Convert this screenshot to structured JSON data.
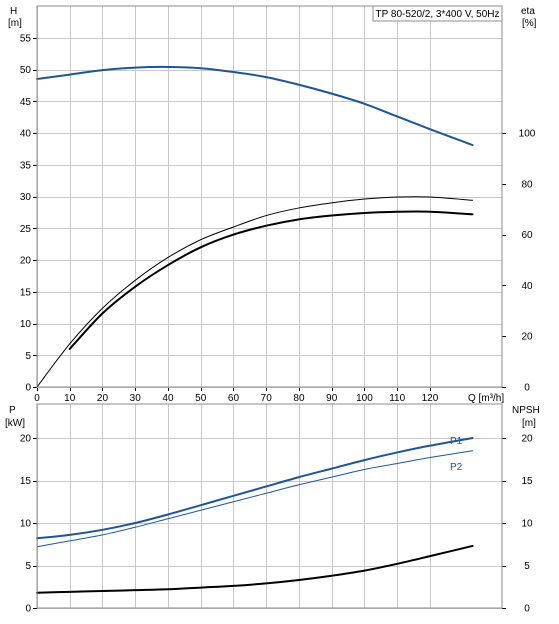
{
  "title_box": "TP 80-520/2, 3*400 V, 50Hz",
  "colors": {
    "blue": "#1f5596",
    "black": "#000000",
    "grid": "#c8c8c8"
  },
  "chart_data": [
    {
      "type": "line",
      "y_left": {
        "label_top": "H",
        "label_unit": "[m]",
        "range": [
          0,
          60
        ],
        "ticks": [
          0,
          5,
          10,
          15,
          20,
          25,
          30,
          35,
          40,
          45,
          50,
          55
        ]
      },
      "y_right": {
        "label_top": "eta",
        "label_unit": "[%]",
        "range": [
          0,
          150
        ],
        "ticks": [
          0,
          20,
          40,
          60,
          80,
          100
        ]
      },
      "x_axis": {
        "label": "Q [m³/h]",
        "range": [
          0,
          142
        ],
        "ticks": [
          0,
          10,
          20,
          30,
          40,
          50,
          60,
          70,
          80,
          90,
          100,
          110,
          120
        ]
      },
      "grid": true,
      "series": [
        {
          "name": "",
          "axis": "left",
          "color": "#1f5596",
          "x": [
            0,
            10,
            20,
            30,
            40,
            50,
            60,
            70,
            80,
            90,
            100,
            110,
            120,
            133
          ],
          "y": [
            48.5,
            49.2,
            49.9,
            50.3,
            50.4,
            50.2,
            49.6,
            48.8,
            47.6,
            46.2,
            44.6,
            42.6,
            40.6,
            38.1
          ]
        },
        {
          "name": "",
          "axis": "right",
          "color": "#000000",
          "width": 1,
          "x": [
            0,
            10,
            20,
            30,
            40,
            50,
            60,
            70,
            80,
            90,
            100,
            110,
            120,
            133
          ],
          "y": [
            0,
            17,
            31,
            42,
            51,
            58,
            63,
            67.5,
            70.5,
            72.5,
            74,
            74.8,
            74.8,
            73.5
          ]
        },
        {
          "name": "",
          "axis": "right",
          "color": "#000000",
          "width": 2,
          "x": [
            10,
            20,
            30,
            40,
            50,
            60,
            70,
            80,
            90,
            100,
            110,
            120,
            133
          ],
          "y": [
            15,
            29,
            39.5,
            48,
            55,
            60,
            63.5,
            66,
            67.5,
            68.5,
            69,
            69,
            68
          ]
        }
      ]
    },
    {
      "type": "line",
      "y_left": {
        "label_top": "P",
        "label_unit": "[kW]",
        "range": [
          0,
          24
        ],
        "ticks": [
          0,
          5,
          10,
          15,
          20
        ]
      },
      "y_right": {
        "label_top": "NPSH",
        "label_unit": "[m]",
        "range": [
          0,
          24
        ],
        "ticks": [
          0,
          5,
          10,
          15,
          20
        ]
      },
      "x_axis": {
        "range": [
          0,
          142
        ],
        "ticks": [
          0,
          10,
          20,
          30,
          40,
          50,
          60,
          70,
          80,
          90,
          100,
          110,
          120
        ]
      },
      "grid": true,
      "series": [
        {
          "name": "P1",
          "axis": "left",
          "color": "#1f5596",
          "width": 2,
          "x": [
            0,
            10,
            20,
            30,
            40,
            50,
            60,
            70,
            80,
            90,
            100,
            110,
            120,
            133
          ],
          "y": [
            8.2,
            8.6,
            9.2,
            10.0,
            11.0,
            12.1,
            13.2,
            14.3,
            15.4,
            16.4,
            17.4,
            18.3,
            19.1,
            20.0
          ]
        },
        {
          "name": "P2",
          "axis": "left",
          "color": "#1f5596",
          "width": 1,
          "x": [
            0,
            10,
            20,
            30,
            40,
            50,
            60,
            70,
            80,
            90,
            100,
            110,
            120,
            133
          ],
          "y": [
            7.2,
            7.9,
            8.6,
            9.5,
            10.5,
            11.5,
            12.5,
            13.5,
            14.5,
            15.4,
            16.3,
            17.0,
            17.7,
            18.5
          ]
        },
        {
          "name": "",
          "axis": "right",
          "color": "#000000",
          "width": 2,
          "x": [
            0,
            10,
            20,
            30,
            40,
            50,
            60,
            70,
            80,
            90,
            100,
            110,
            120,
            133
          ],
          "y": [
            1.8,
            1.9,
            2.0,
            2.1,
            2.2,
            2.4,
            2.6,
            2.9,
            3.3,
            3.8,
            4.4,
            5.2,
            6.1,
            7.3
          ]
        }
      ]
    }
  ]
}
